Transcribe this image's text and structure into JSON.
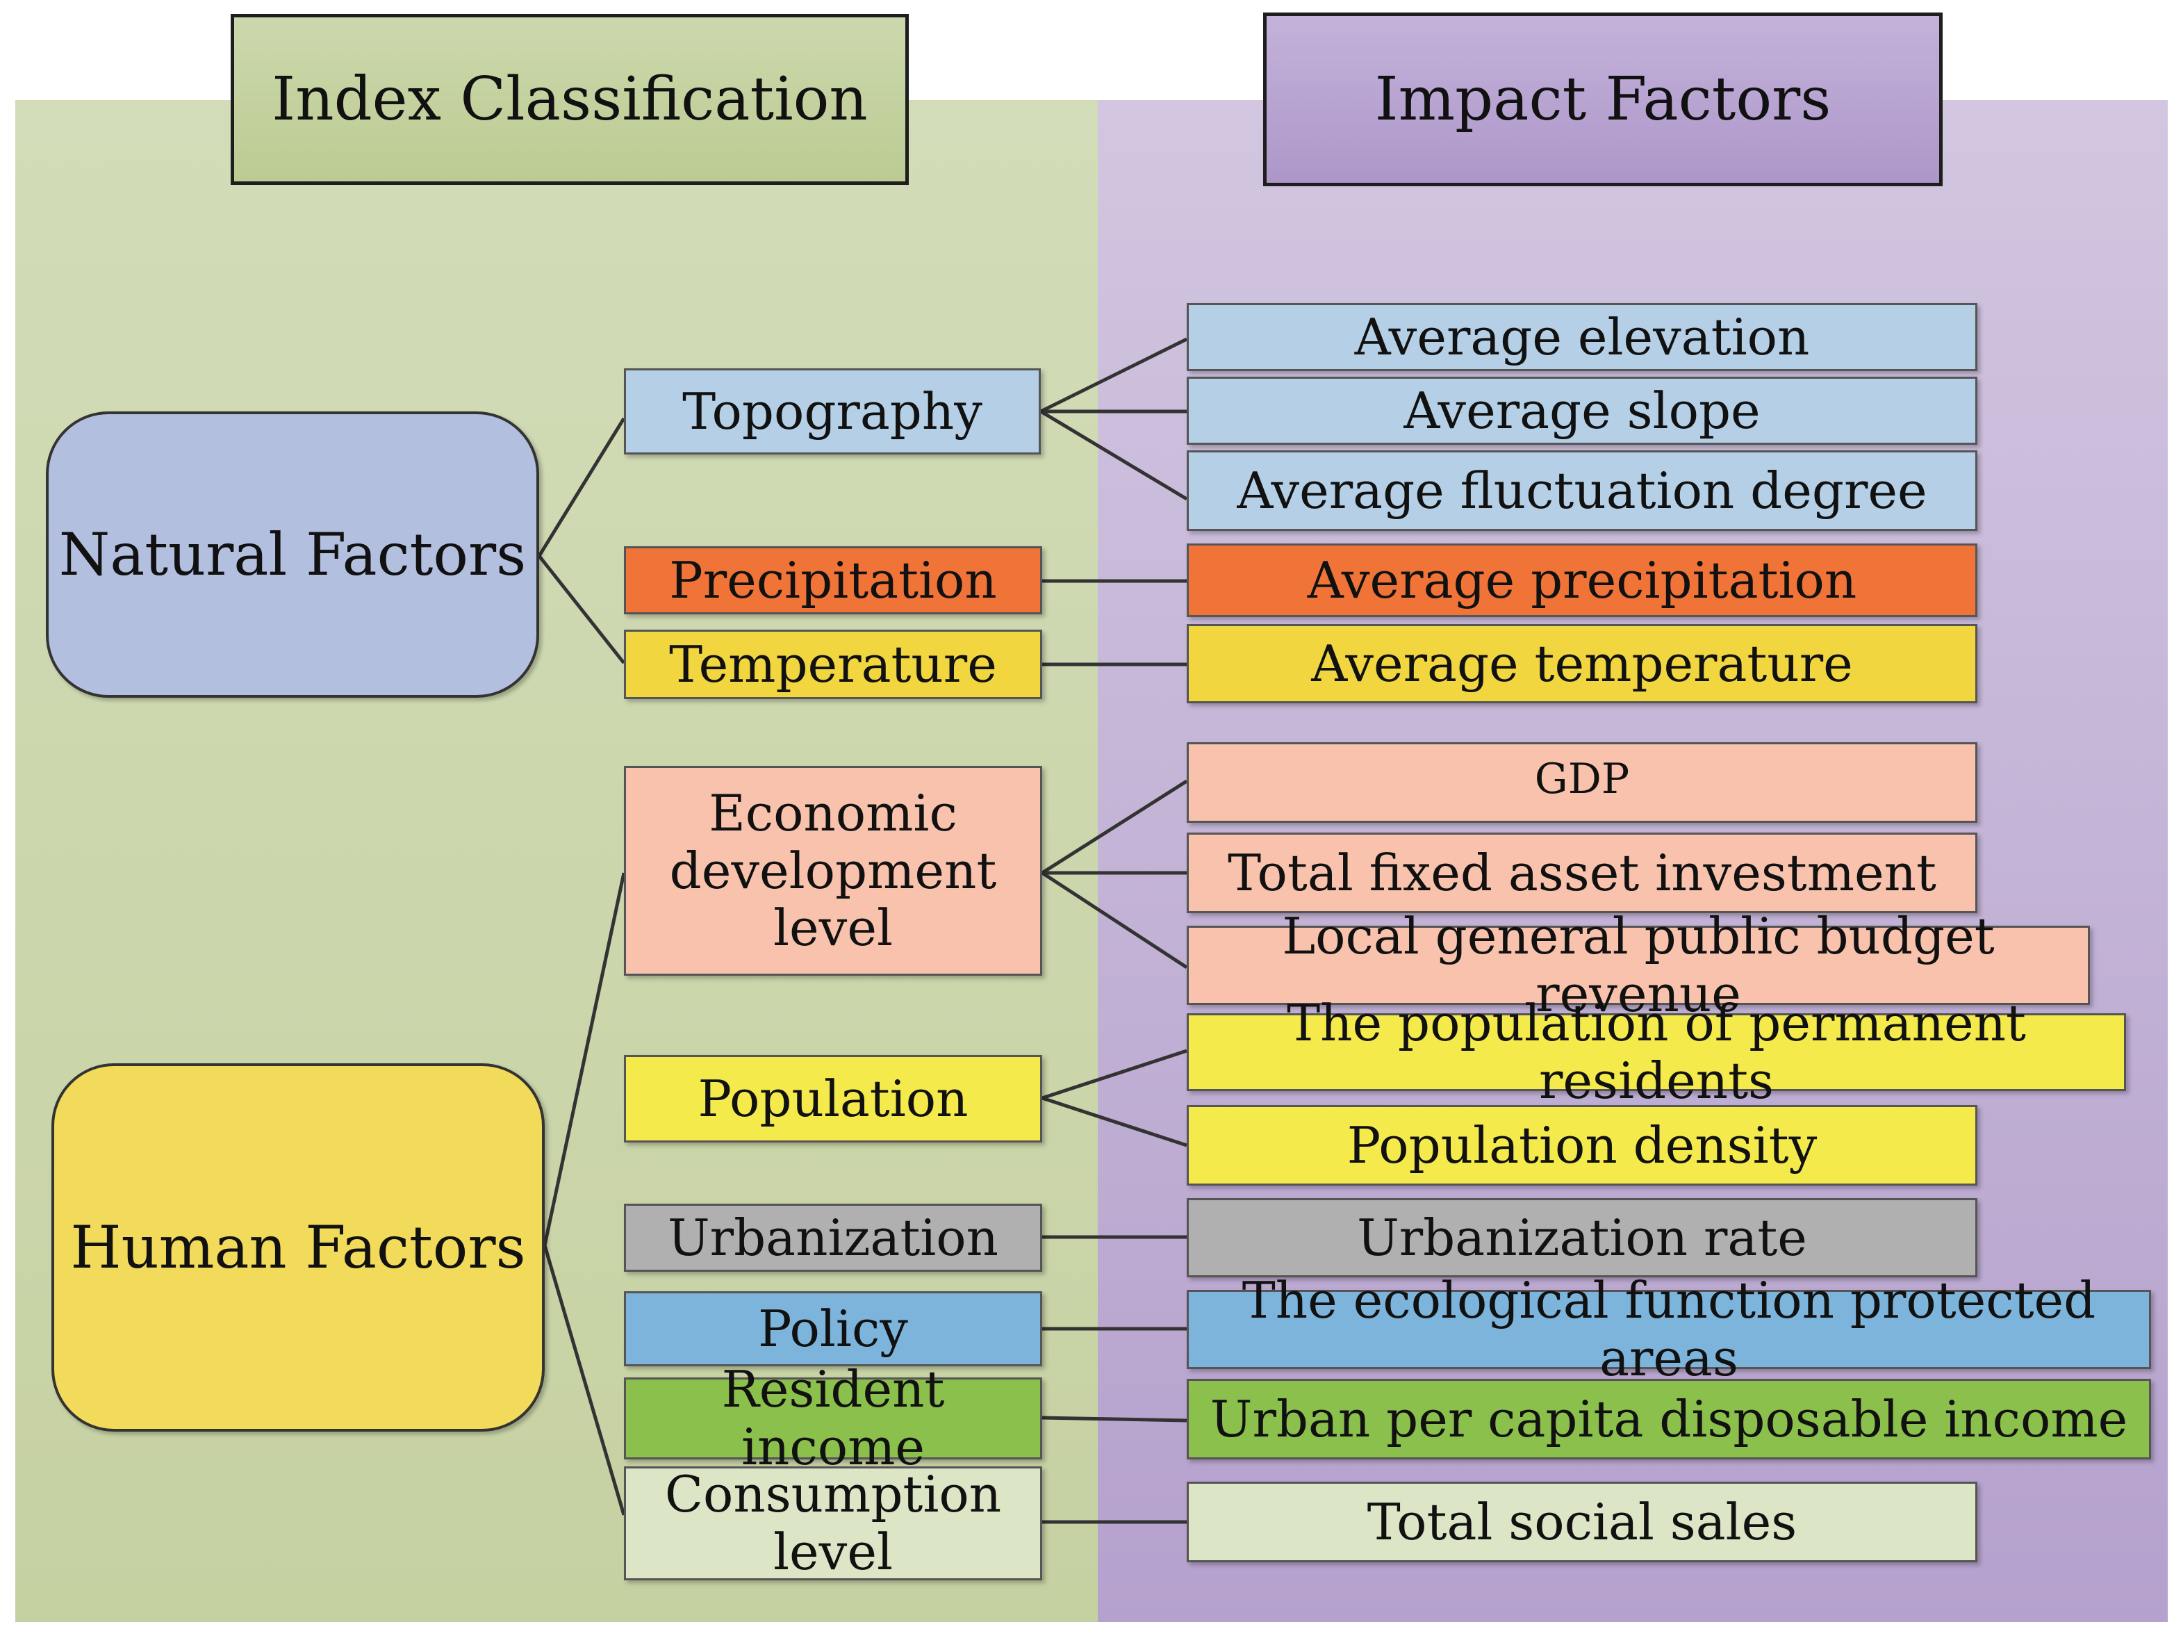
{
  "headers": {
    "left": "Index Classification",
    "right": "Impact Factors"
  },
  "categories": {
    "natural": "Natural  Factors",
    "human": "Human Factors"
  },
  "subcategories": {
    "topography": "Topography",
    "precipitation": "Precipitation",
    "temperature": "Temperature",
    "economic": "Economic development level",
    "population": "Population",
    "urbanization": "Urbanization",
    "policy": "Policy",
    "resident_income": "Resident income",
    "consumption": "Consumption level"
  },
  "impacts": {
    "avg_elevation": "Average elevation",
    "avg_slope": "Average slope",
    "avg_fluctuation": "Average fluctuation degree",
    "avg_precipitation": "Average precipitation",
    "avg_temperature": "Average temperature",
    "gdp": "GDP",
    "fixed_asset": "Total fixed asset investment",
    "budget_revenue": "Local general public budget revenue",
    "permanent_residents": "The population of permanent residents",
    "population_density": "Population density",
    "urbanization_rate": "Urbanization rate",
    "protected_areas": "The ecological function protected areas",
    "disposable_income": "Urban per capita disposable income",
    "social_sales": "Total social sales"
  },
  "colors": {
    "left_panel": "#cbd5ae",
    "right_panel": "#c2b2d6",
    "header_left": "#c5d2a1",
    "header_right": "#b9a4cf",
    "natural": "#b3bfdf",
    "human": "#f2da5a",
    "topography": "#b5d0e6",
    "precipitation": "#f07438",
    "temperature": "#f2d640",
    "economic": "#f8c2ad",
    "population": "#f4ea4c",
    "urbanization": "#b0b0b0",
    "policy": "#7db4db",
    "resident_income": "#8cc04c",
    "consumption": "#dce5c5"
  }
}
